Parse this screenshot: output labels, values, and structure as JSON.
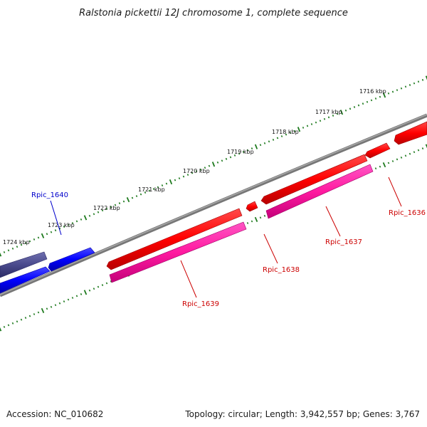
{
  "title": "Ralstonia pickettii 12J chromosome 1, complete sequence",
  "footer": {
    "accession": "Accession: NC_010682",
    "topology": "Topology: circular; Length: 3,942,557 bp; Genes: 3,767"
  },
  "tick_labels": [
    "1716 kbp",
    "1717 kbp",
    "1718 kbp",
    "1719 kbp",
    "1720 kbp",
    "1721 kbp",
    "1722 kbp",
    "1723 kbp",
    "1724 kbp"
  ],
  "genes": [
    {
      "name": "Rpic_1636",
      "color": "#cc0000"
    },
    {
      "name": "Rpic_1637",
      "color": "#cc0000"
    },
    {
      "name": "Rpic_1638",
      "color": "#cc0000"
    },
    {
      "name": "Rpic_1639",
      "color": "#cc0000"
    },
    {
      "name": "Rpic_1640",
      "color": "#0000cc"
    }
  ],
  "colors": {
    "cds": "#ff0000",
    "gene": "#0000ff",
    "rna": "#ff1aa0",
    "operon": "#4a4a8c",
    "backbone": "#808080",
    "tick": "#1e7a1e"
  }
}
